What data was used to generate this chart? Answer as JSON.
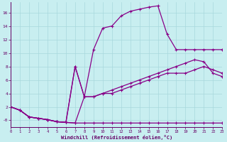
{
  "xlabel": "Windchill (Refroidissement éolien,°C)",
  "bg_color": "#c8eef0",
  "line_color": "#880088",
  "grid_color": "#a8d8dc",
  "line1_x": [
    0,
    1,
    2,
    3,
    4,
    5,
    6,
    7,
    8,
    9,
    10,
    11,
    12,
    13,
    14,
    15,
    16,
    17,
    18,
    19,
    20,
    21,
    22,
    23
  ],
  "line1_y": [
    2,
    1.5,
    0.5,
    0.3,
    0.1,
    -0.2,
    -0.3,
    -0.4,
    -0.4,
    -0.4,
    -0.4,
    -0.4,
    -0.4,
    -0.4,
    -0.4,
    -0.4,
    -0.4,
    -0.4,
    -0.4,
    -0.4,
    -0.4,
    -0.4,
    -0.4,
    -0.4
  ],
  "line2_x": [
    0,
    1,
    2,
    3,
    4,
    5,
    6,
    7,
    8,
    9,
    10,
    11,
    12,
    13,
    14,
    15,
    16,
    17,
    18,
    19,
    20,
    21,
    22,
    23
  ],
  "line2_y": [
    2,
    1.5,
    0.5,
    0.3,
    0.1,
    -0.2,
    -0.3,
    8,
    3.5,
    3.5,
    4,
    4.5,
    5,
    5.5,
    6,
    6.5,
    7,
    7.5,
    8,
    8.5,
    9,
    8.7,
    7,
    6.5
  ],
  "line3_x": [
    0,
    1,
    2,
    3,
    4,
    5,
    6,
    7,
    8,
    9,
    10,
    11,
    12,
    13,
    14,
    15,
    16,
    17,
    18,
    19,
    20,
    21,
    22,
    23
  ],
  "line3_y": [
    2,
    1.5,
    0.5,
    0.3,
    0.1,
    -0.2,
    -0.3,
    -0.4,
    3.5,
    3.5,
    4,
    4,
    4.5,
    5,
    5.5,
    6,
    6.5,
    7,
    7,
    7,
    7.5,
    8,
    7.5,
    7
  ],
  "line4_x": [
    0,
    1,
    2,
    3,
    4,
    5,
    6,
    7,
    8,
    9,
    10,
    11,
    12,
    13,
    14,
    15,
    16,
    17,
    18,
    19,
    20,
    21,
    22,
    23
  ],
  "line4_y": [
    2,
    1.5,
    0.5,
    0.3,
    0.1,
    -0.2,
    -0.3,
    8,
    3.5,
    10.5,
    13.7,
    14,
    15.5,
    16.2,
    16.5,
    16.8,
    17,
    12.8,
    10.5,
    10.5,
    10.5,
    10.5,
    10.5,
    10.5
  ],
  "ylim": [
    -1.0,
    17.5
  ],
  "xlim": [
    0,
    23
  ],
  "xticks": [
    0,
    1,
    2,
    3,
    4,
    5,
    6,
    7,
    8,
    9,
    10,
    11,
    12,
    13,
    14,
    15,
    16,
    17,
    18,
    19,
    20,
    21,
    22,
    23
  ],
  "yticks": [
    0,
    2,
    4,
    6,
    8,
    10,
    12,
    14,
    16
  ],
  "ytick_labels": [
    "-0",
    "2",
    "4",
    "6",
    "8",
    "10",
    "12",
    "14",
    "16"
  ]
}
